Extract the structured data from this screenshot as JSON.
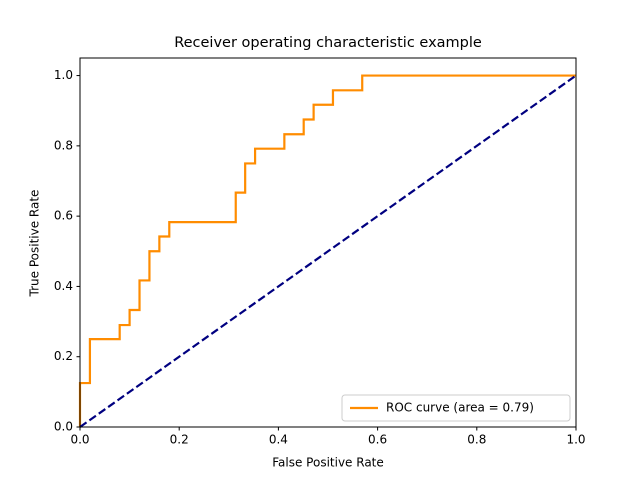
{
  "chart_data": {
    "type": "line",
    "title": "Receiver operating characteristic example",
    "xlabel": "False Positive Rate",
    "ylabel": "True Positive Rate",
    "xlim": [
      0,
      1
    ],
    "ylim": [
      0,
      1.05
    ],
    "xticks": [
      {
        "value": 0,
        "label": "0.0"
      },
      0.2,
      0.4,
      0.6,
      0.8,
      {
        "value": 1,
        "label": "1.0"
      }
    ],
    "yticks": [
      {
        "value": 0,
        "label": "0.0"
      },
      0.2,
      0.4,
      0.6,
      0.8,
      {
        "value": 1,
        "label": "1.0"
      }
    ],
    "grid": false,
    "legend": "lower right",
    "series": [
      {
        "name": "ROC curve (area = 0.79)",
        "color": "#ff8c00",
        "dash": false,
        "x": [
          0,
          0,
          0.02,
          0.02,
          0.08,
          0.08,
          0.1,
          0.1,
          0.12,
          0.12,
          0.14,
          0.14,
          0.16,
          0.16,
          0.18,
          0.18,
          0.314,
          0.314,
          0.333,
          0.333,
          0.353,
          0.353,
          0.412,
          0.412,
          0.451,
          0.451,
          0.471,
          0.471,
          0.51,
          0.51,
          0.569,
          0.569,
          1
        ],
        "values": [
          0,
          0.125,
          0.125,
          0.25,
          0.25,
          0.29,
          0.29,
          0.333,
          0.333,
          0.417,
          0.417,
          0.5,
          0.5,
          0.542,
          0.542,
          0.583,
          0.583,
          0.667,
          0.667,
          0.75,
          0.75,
          0.792,
          0.792,
          0.833,
          0.833,
          0.875,
          0.875,
          0.917,
          0.917,
          0.958,
          0.958,
          1,
          1
        ]
      },
      {
        "color": "#000080",
        "dash": true,
        "x": [
          0,
          1
        ],
        "values": [
          0,
          1
        ]
      }
    ]
  }
}
